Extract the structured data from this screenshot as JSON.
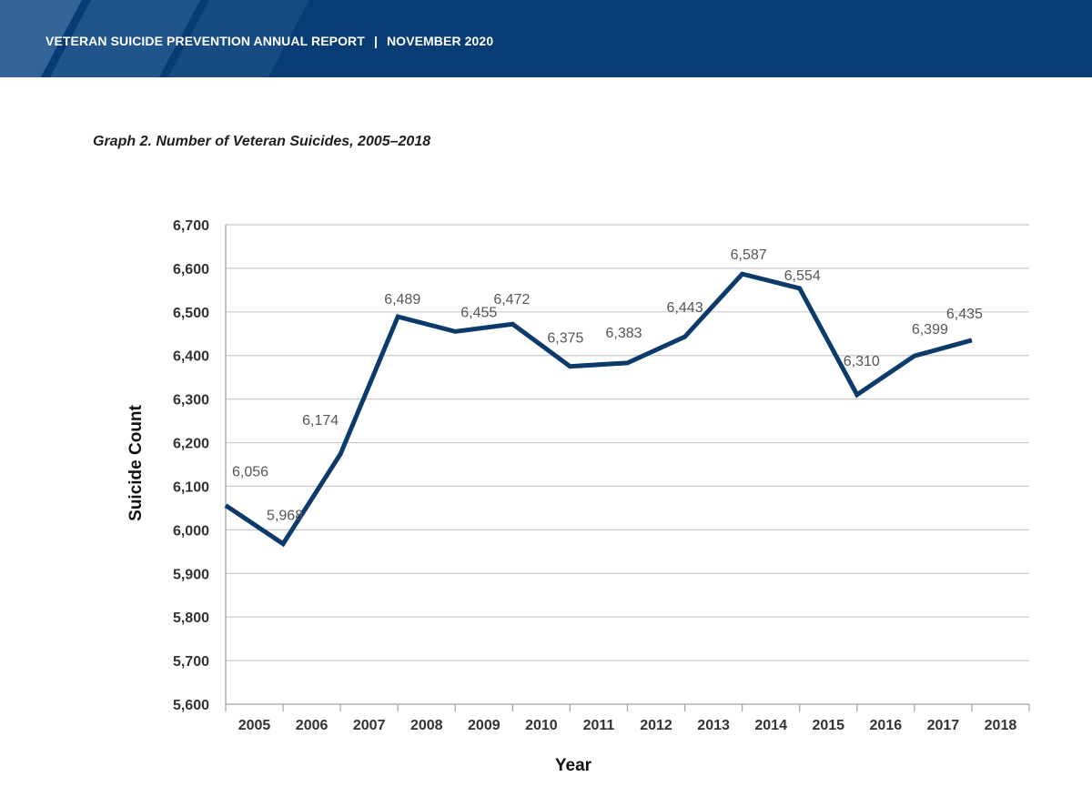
{
  "header": {
    "report": "VETERAN SUICIDE PREVENTION ANNUAL REPORT",
    "separator": "|",
    "date": "NOVEMBER 2020"
  },
  "colors": {
    "banner": "#083c74",
    "line": "#0b3a6b",
    "grid": "#c8c8c8"
  },
  "chart_data": {
    "type": "line",
    "title": "Graph 2. Number of Veteran Suicides, 2005–2018",
    "xlabel": "Year",
    "ylabel": "Suicide Count",
    "categories": [
      "2005",
      "2006",
      "2007",
      "2008",
      "2009",
      "2010",
      "2011",
      "2012",
      "2013",
      "2014",
      "2015",
      "2016",
      "2017",
      "2018"
    ],
    "series": [
      {
        "name": "Veteran Suicides",
        "values": [
          6056,
          5968,
          6174,
          6489,
          6455,
          6472,
          6375,
          6383,
          6443,
          6587,
          6554,
          6310,
          6399,
          6435
        ],
        "labels": [
          "6,056",
          "5,968",
          "6,174",
          "6,489",
          "6,455",
          "6,472",
          "6,375",
          "6,383",
          "6,443",
          "6,587",
          "6,554",
          "6,310",
          "6,399",
          "6,435"
        ]
      }
    ],
    "ylim": [
      5600,
      6700
    ],
    "yticks": [
      5600,
      5700,
      5800,
      5900,
      6000,
      6100,
      6200,
      6300,
      6400,
      6500,
      6600,
      6700
    ],
    "ytick_labels": [
      "5,600",
      "5,700",
      "5,800",
      "5,900",
      "6,000",
      "6,100",
      "6,200",
      "6,300",
      "6,400",
      "6,500",
      "6,600",
      "6,700"
    ],
    "grid": true,
    "legend": "none"
  }
}
